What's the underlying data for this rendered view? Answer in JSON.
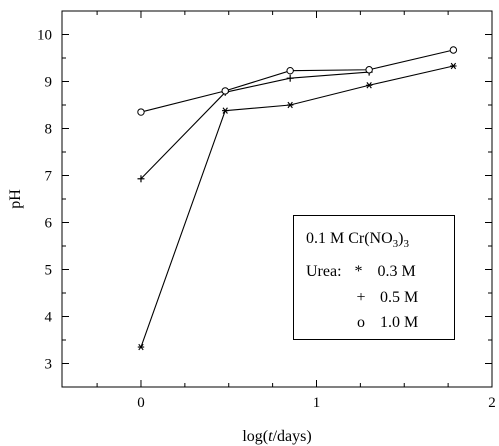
{
  "chart_data": {
    "type": "line",
    "xlabel": "log(t/days)",
    "ylabel": "pH",
    "xlim": [
      -0.45,
      2.0
    ],
    "ylim": [
      2.5,
      10.5
    ],
    "x_ticks": [
      "0",
      "1",
      "2"
    ],
    "y_ticks": [
      "3",
      "4",
      "5",
      "6",
      "7",
      "8",
      "9",
      "10"
    ],
    "grid": false,
    "legend_placement": "lower-right",
    "legend_title": "0.1 M Cr(NO3)3",
    "legend_title_parts": {
      "base": "0.1 M Cr(NO",
      "sub1": "3",
      "close": ")",
      "sub2": "3"
    },
    "legend_prefix": "Urea:",
    "series": [
      {
        "name": "0.3 M",
        "marker": "asterisk",
        "x": [
          0,
          0.48,
          0.85,
          1.3,
          1.78
        ],
        "y": [
          3.35,
          8.38,
          8.5,
          8.92,
          9.33
        ]
      },
      {
        "name": "0.5 M",
        "marker": "plus",
        "x": [
          0,
          0.48,
          0.85,
          1.3
        ],
        "y": [
          6.93,
          8.77,
          9.07,
          9.2
        ]
      },
      {
        "name": "1.0 M",
        "marker": "circle",
        "x": [
          0,
          0.48,
          0.85,
          1.3,
          1.78
        ],
        "y": [
          8.35,
          8.8,
          9.23,
          9.25,
          9.67
        ]
      }
    ],
    "legend_markers": [
      "*",
      "+",
      "o"
    ]
  }
}
